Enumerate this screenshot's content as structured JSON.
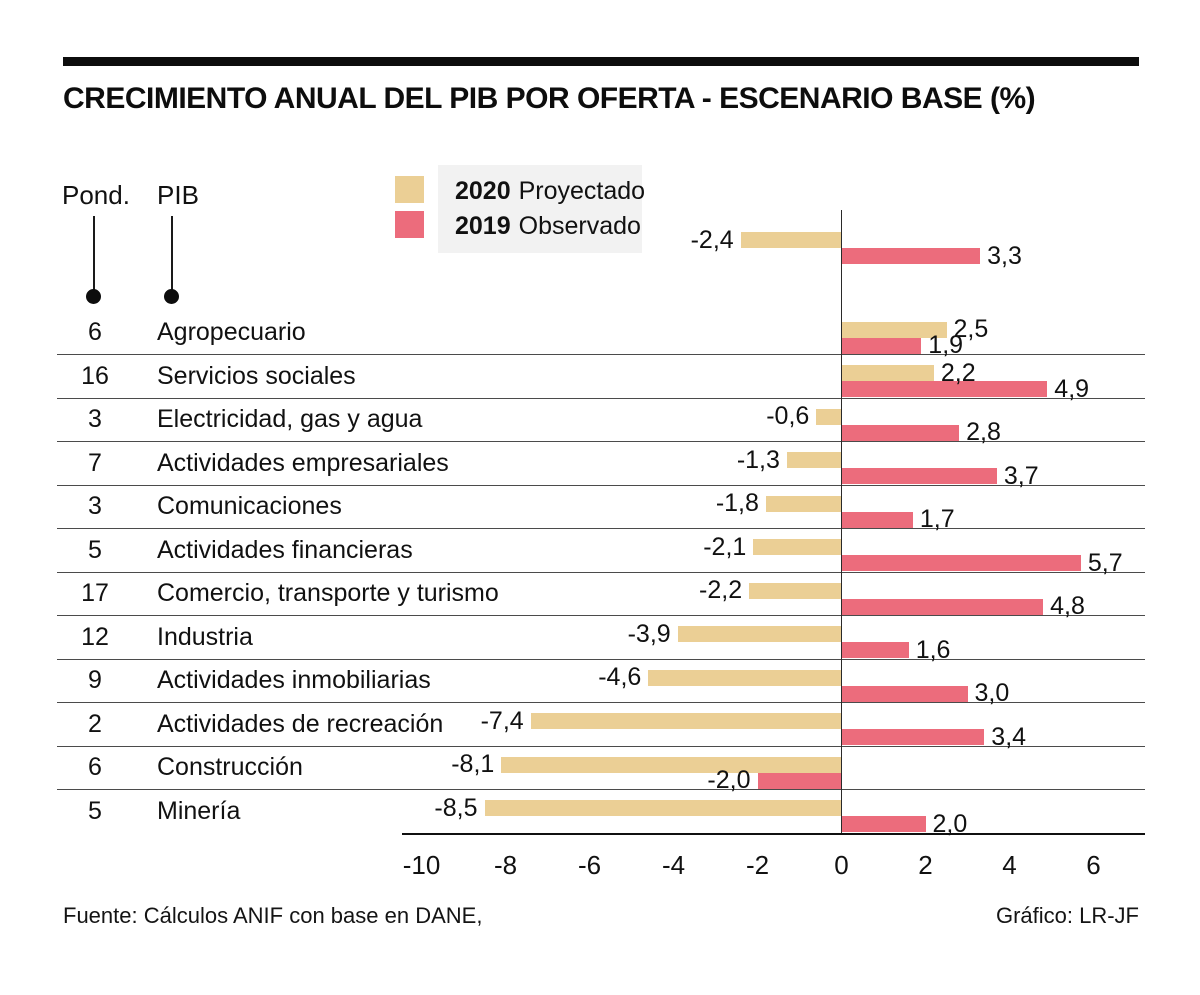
{
  "title": "CRECIMIENTO ANUAL DEL PIB POR OFERTA - ESCENARIO BASE (%)",
  "header": {
    "pond_label": "Pond.",
    "pib_label": "PIB"
  },
  "legend": {
    "items": [
      {
        "year": "2020",
        "text": "Proyectado",
        "color": "#ebcf95"
      },
      {
        "year": "2019",
        "text": "Observado",
        "color": "#ec6c7c"
      }
    ]
  },
  "colors": {
    "bar_2020": "#ebcf95",
    "bar_2019": "#ec6c7c",
    "legend_bg": "#f2f2f2",
    "axis": "#2a2a2a"
  },
  "chart_data": {
    "type": "bar",
    "orientation": "horizontal",
    "series_names": [
      "2020 Proyectado",
      "2019 Observado"
    ],
    "total_row": {
      "v2020": -2.4,
      "v2019": 3.3,
      "d2020": "-2,4",
      "d2019": "3,3"
    },
    "rows": [
      {
        "pond": "6",
        "label": "Agropecuario",
        "v2020": 2.5,
        "v2019": 1.9,
        "d2020": "2,5",
        "d2019": "1,9"
      },
      {
        "pond": "16",
        "label": "Servicios sociales",
        "v2020": 2.2,
        "v2019": 4.9,
        "d2020": "2,2",
        "d2019": "4,9"
      },
      {
        "pond": "3",
        "label": "Electricidad, gas y agua",
        "v2020": -0.6,
        "v2019": 2.8,
        "d2020": "-0,6",
        "d2019": "2,8"
      },
      {
        "pond": "7",
        "label": "Actividades empresariales",
        "v2020": -1.3,
        "v2019": 3.7,
        "d2020": "-1,3",
        "d2019": "3,7"
      },
      {
        "pond": "3",
        "label": "Comunicaciones",
        "v2020": -1.8,
        "v2019": 1.7,
        "d2020": "-1,8",
        "d2019": "1,7"
      },
      {
        "pond": "5",
        "label": "Actividades financieras",
        "v2020": -2.1,
        "v2019": 5.7,
        "d2020": "-2,1",
        "d2019": "5,7"
      },
      {
        "pond": "17",
        "label": "Comercio, transporte y turismo",
        "v2020": -2.2,
        "v2019": 4.8,
        "d2020": "-2,2",
        "d2019": "4,8"
      },
      {
        "pond": "12",
        "label": "Industria",
        "v2020": -3.9,
        "v2019": 1.6,
        "d2020": "-3,9",
        "d2019": "1,6"
      },
      {
        "pond": "9",
        "label": "Actividades inmobiliarias",
        "v2020": -4.6,
        "v2019": 3.0,
        "d2020": "-4,6",
        "d2019": "3,0"
      },
      {
        "pond": "2",
        "label": "Actividades de recreación",
        "v2020": -7.4,
        "v2019": 3.4,
        "d2020": "-7,4",
        "d2019": "3,4"
      },
      {
        "pond": "6",
        "label": "Construcción",
        "v2020": -8.1,
        "v2019": -2.0,
        "d2020": "-8,1",
        "d2019": "-2,0"
      },
      {
        "pond": "5",
        "label": "Minería",
        "v2020": -8.5,
        "v2019": 2.0,
        "d2020": "-8,5",
        "d2019": "2,0"
      }
    ],
    "x_ticks": [
      {
        "label": "-10",
        "value": -10
      },
      {
        "label": "-8",
        "value": -8
      },
      {
        "label": "-6",
        "value": -6
      },
      {
        "label": "-4",
        "value": -4
      },
      {
        "label": "-2",
        "value": -2
      },
      {
        "label": "0",
        "value": 0
      },
      {
        "label": "2",
        "value": 2
      },
      {
        "label": "4",
        "value": 4
      },
      {
        "label": "6",
        "value": 6
      }
    ],
    "xlim": [
      -10.5,
      7.2
    ],
    "grid": "horizontal-row-separators",
    "legend_position": "top-left"
  },
  "footer": {
    "source": "Fuente: Cálculos ANIF con base en DANE,",
    "credit": "Gráfico: LR-JF"
  }
}
